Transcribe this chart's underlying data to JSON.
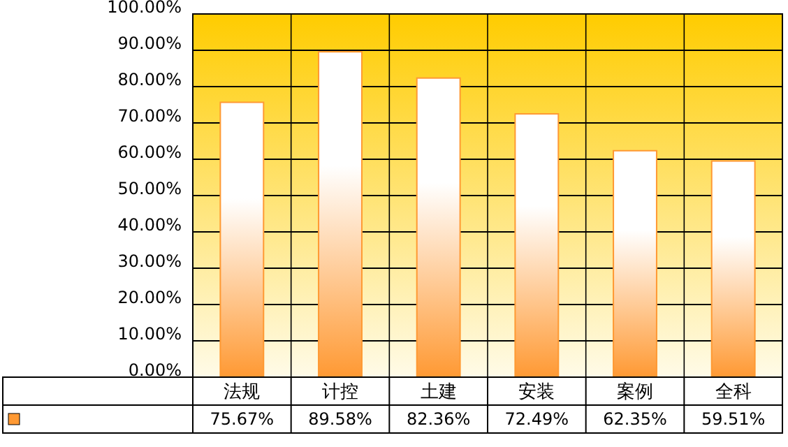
{
  "chart_data": {
    "type": "bar",
    "categories": [
      "法规",
      "计控",
      "土建",
      "安装",
      "案例",
      "全科"
    ],
    "series": [
      {
        "color": "#ff9933",
        "values": [
          75.67,
          89.58,
          82.36,
          72.49,
          62.35,
          59.51
        ]
      }
    ],
    "value_labels": [
      "75.67%",
      "89.58%",
      "82.36%",
      "72.49%",
      "62.35%",
      "59.51%"
    ],
    "ylim": [
      0,
      100
    ],
    "yticks": [
      {
        "value": 0,
        "label": "0.00%"
      },
      {
        "value": 10,
        "label": "10.00%"
      },
      {
        "value": 20,
        "label": "20.00%"
      },
      {
        "value": 30,
        "label": "30.00%"
      },
      {
        "value": 40,
        "label": "40.00%"
      },
      {
        "value": 50,
        "label": "50.00%"
      },
      {
        "value": 60,
        "label": "60.00%"
      },
      {
        "value": 70,
        "label": "70.00%"
      },
      {
        "value": 80,
        "label": "80.00%"
      },
      {
        "value": 90,
        "label": "90.00%"
      },
      {
        "value": 100,
        "label": "100.00%"
      }
    ],
    "grid": "y"
  }
}
